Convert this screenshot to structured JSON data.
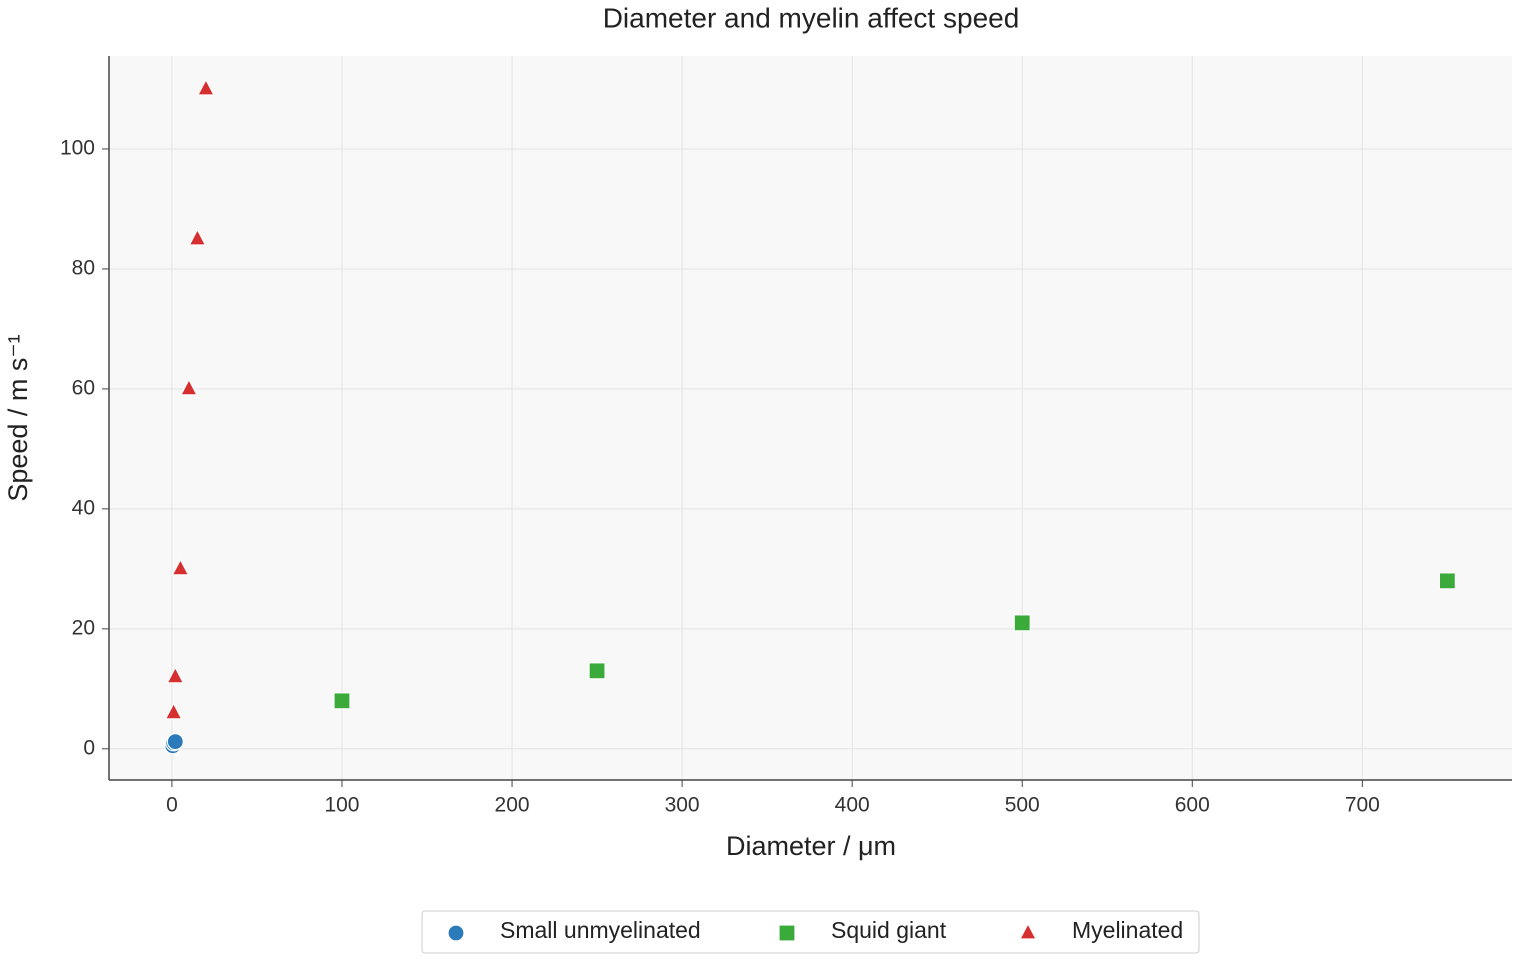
{
  "chart_data": {
    "type": "scatter",
    "title": "Diameter and myelin affect speed",
    "x_label": "Diameter / μm",
    "y_label": "Speed / m s⁻¹",
    "xlim": [
      -37,
      788
    ],
    "ylim": [
      -5.2,
      115.5
    ],
    "xticks": [
      0,
      100,
      200,
      300,
      400,
      500,
      600,
      700
    ],
    "yticks": [
      0,
      20,
      40,
      60,
      80,
      100
    ],
    "grid": true,
    "legend": "bottom",
    "series": [
      {
        "name": "Small unmyelinated",
        "color": "#2b7bba",
        "marker": "circle",
        "x": [
          0.5,
          1,
          2
        ],
        "values": [
          0.5,
          1,
          1.2
        ]
      },
      {
        "name": "Squid giant",
        "color": "#3aaa3a",
        "marker": "square",
        "x": [
          100,
          250,
          500,
          750
        ],
        "values": [
          8,
          13,
          21,
          28
        ]
      },
      {
        "name": "Myelinated",
        "color": "#d62f2f",
        "marker": "triangle",
        "x": [
          1,
          2,
          5,
          10,
          15,
          20
        ],
        "values": [
          6,
          12,
          30,
          60,
          85,
          110
        ]
      }
    ]
  }
}
